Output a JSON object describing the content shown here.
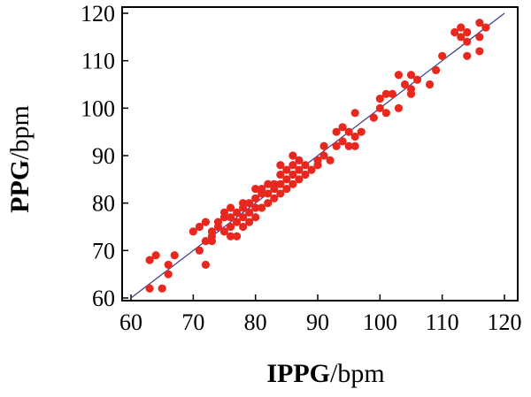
{
  "chart_data": {
    "type": "scatter",
    "title": "",
    "xlabel_bold": "IPPG",
    "xlabel_rest": "/bpm",
    "ylabel_bold": "PPG",
    "ylabel_rest": "/bpm",
    "xlim": [
      60,
      120
    ],
    "ylim": [
      60,
      120
    ],
    "xticks": [
      60,
      70,
      80,
      90,
      100,
      110,
      120
    ],
    "yticks": [
      60,
      70,
      80,
      90,
      100,
      110,
      120
    ],
    "grid": false,
    "legend": "none",
    "colors": {
      "points": "#e8281e",
      "fit_line": "#3a3a8c",
      "axis": "#000000"
    },
    "fit_line": {
      "x": [
        60,
        120
      ],
      "y": [
        60,
        120
      ]
    },
    "points": [
      [
        63,
        62
      ],
      [
        65,
        62
      ],
      [
        63,
        68
      ],
      [
        64,
        69
      ],
      [
        66,
        65
      ],
      [
        66,
        67
      ],
      [
        67,
        69
      ],
      [
        70,
        74
      ],
      [
        71,
        70
      ],
      [
        71,
        75
      ],
      [
        72,
        67
      ],
      [
        72,
        72
      ],
      [
        72,
        76
      ],
      [
        73,
        72
      ],
      [
        73,
        73
      ],
      [
        73,
        74
      ],
      [
        74,
        75
      ],
      [
        74,
        76
      ],
      [
        75,
        74
      ],
      [
        75,
        77
      ],
      [
        75,
        78
      ],
      [
        76,
        73
      ],
      [
        76,
        75
      ],
      [
        76,
        77
      ],
      [
        76,
        79
      ],
      [
        77,
        73
      ],
      [
        77,
        76
      ],
      [
        77,
        78
      ],
      [
        78,
        75
      ],
      [
        78,
        77
      ],
      [
        78,
        79
      ],
      [
        78,
        80
      ],
      [
        79,
        76
      ],
      [
        79,
        78
      ],
      [
        79,
        80
      ],
      [
        80,
        77
      ],
      [
        80,
        79
      ],
      [
        80,
        81
      ],
      [
        80,
        83
      ],
      [
        81,
        79
      ],
      [
        81,
        82
      ],
      [
        81,
        83
      ],
      [
        82,
        80
      ],
      [
        82,
        82
      ],
      [
        82,
        84
      ],
      [
        83,
        81
      ],
      [
        83,
        83
      ],
      [
        83,
        84
      ],
      [
        84,
        82
      ],
      [
        84,
        84
      ],
      [
        84,
        86
      ],
      [
        84,
        88
      ],
      [
        85,
        83
      ],
      [
        85,
        85
      ],
      [
        85,
        87
      ],
      [
        86,
        84
      ],
      [
        86,
        86
      ],
      [
        86,
        88
      ],
      [
        86,
        90
      ],
      [
        87,
        85
      ],
      [
        87,
        87
      ],
      [
        87,
        89
      ],
      [
        88,
        86
      ],
      [
        88,
        88
      ],
      [
        89,
        87
      ],
      [
        90,
        88
      ],
      [
        90,
        89
      ],
      [
        91,
        90
      ],
      [
        91,
        92
      ],
      [
        92,
        89
      ],
      [
        93,
        92
      ],
      [
        93,
        95
      ],
      [
        94,
        93
      ],
      [
        94,
        96
      ],
      [
        95,
        92
      ],
      [
        95,
        95
      ],
      [
        96,
        92
      ],
      [
        96,
        94
      ],
      [
        96,
        99
      ],
      [
        97,
        95
      ],
      [
        99,
        98
      ],
      [
        100,
        100
      ],
      [
        100,
        102
      ],
      [
        101,
        99
      ],
      [
        101,
        103
      ],
      [
        102,
        103
      ],
      [
        103,
        100
      ],
      [
        103,
        107
      ],
      [
        104,
        105
      ],
      [
        105,
        103
      ],
      [
        105,
        104
      ],
      [
        105,
        107
      ],
      [
        106,
        106
      ],
      [
        108,
        105
      ],
      [
        109,
        108
      ],
      [
        110,
        111
      ],
      [
        112,
        116
      ],
      [
        113,
        117
      ],
      [
        113,
        115
      ],
      [
        114,
        111
      ],
      [
        114,
        114
      ],
      [
        114,
        116
      ],
      [
        116,
        112
      ],
      [
        116,
        115
      ],
      [
        116,
        118
      ],
      [
        117,
        117
      ]
    ]
  }
}
